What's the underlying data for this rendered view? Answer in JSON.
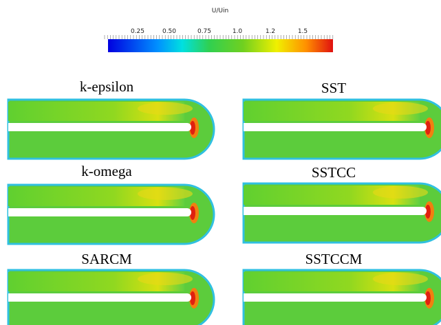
{
  "colorbar": {
    "title": "U/Uin",
    "ticks": [
      "0.25",
      "0.50",
      "0.75",
      "1.0",
      "1.2",
      "1.5"
    ]
  },
  "panels": [
    {
      "label": "k-epsilon"
    },
    {
      "label": "SST"
    },
    {
      "label": "k-omega"
    },
    {
      "label": "SSTCC"
    },
    {
      "label": "SARCM"
    },
    {
      "label": "SSTCCM"
    }
  ]
}
